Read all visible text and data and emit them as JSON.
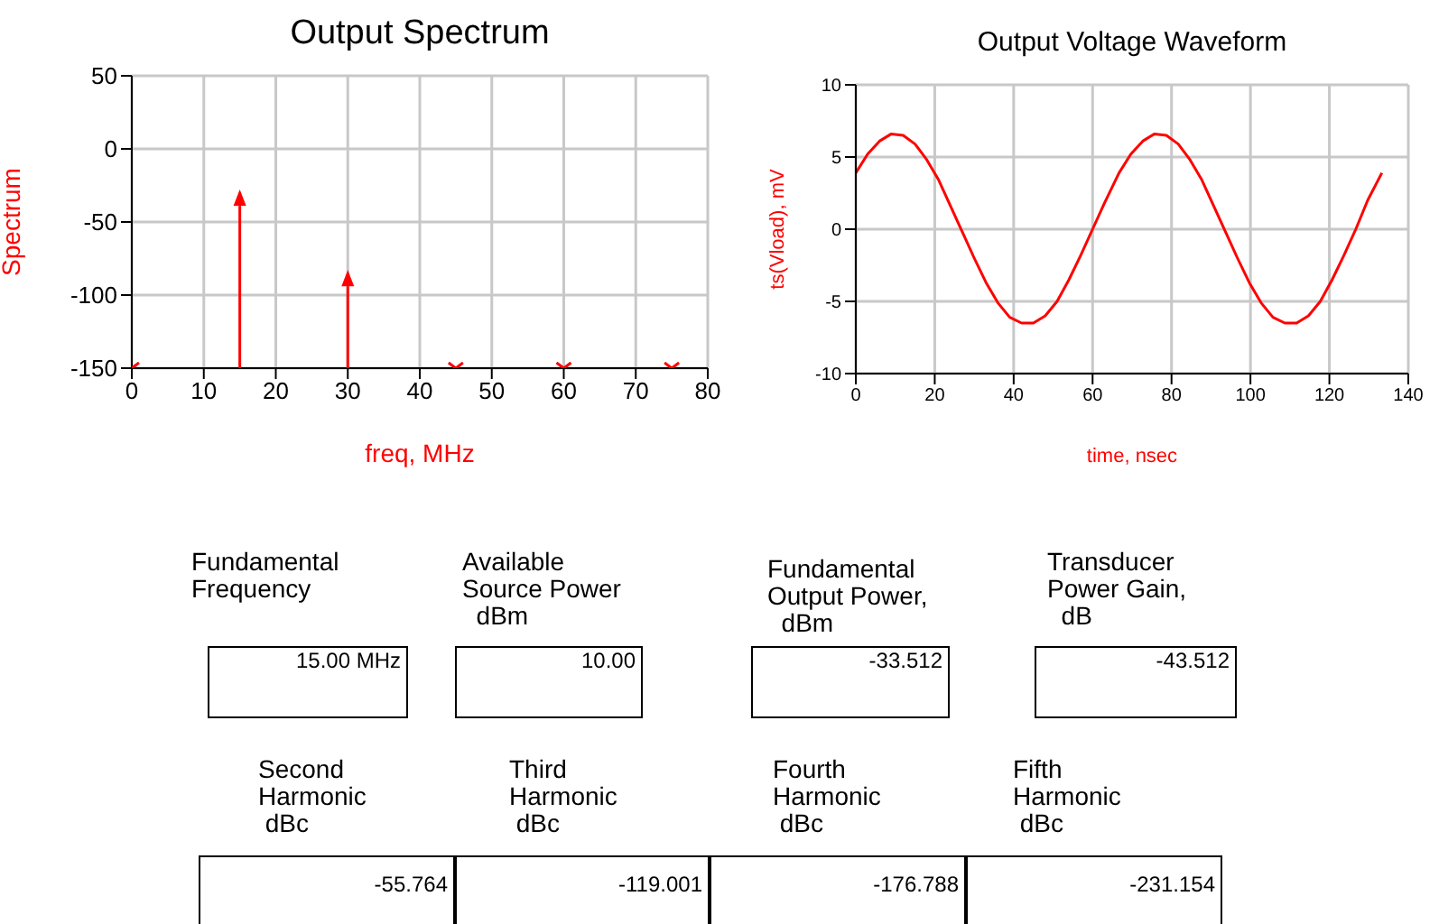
{
  "chart_data": [
    {
      "type": "lollipop",
      "title": "Output Spectrum",
      "xlabel": "freq, MHz",
      "ylabel": "Spectrum",
      "series": [
        {
          "type": "lollipop",
          "x": [
            15,
            30
          ],
          "values": [
            -34,
            -89
          ],
          "color": "#ff0000",
          "marker": "triangle"
        },
        {
          "type": "scatter",
          "x": [
            0,
            45,
            60,
            75
          ],
          "values": [
            -150,
            -150,
            -150,
            -150
          ],
          "color": "#ff0000",
          "marker": "cross"
        }
      ],
      "xlim": [
        0,
        80
      ],
      "xticks": [
        0,
        10,
        20,
        30,
        40,
        50,
        60,
        70,
        80
      ],
      "ylim": [
        -150,
        50
      ],
      "yticks": [
        -150,
        -100,
        -50,
        0,
        50
      ],
      "grid": true
    },
    {
      "type": "line",
      "title": "Output Voltage Waveform",
      "xlabel": "time, nsec",
      "ylabel": "ts(Vload), mV",
      "color": "#ff0000",
      "x": [
        0,
        3,
        6,
        9,
        12,
        15,
        18,
        21,
        24,
        27,
        30,
        33,
        36,
        39,
        42,
        45,
        48,
        51,
        54,
        57,
        60,
        63,
        66.7,
        69.7,
        72.7,
        75.7,
        78.7,
        81.7,
        84.7,
        87.7,
        90.7,
        93.7,
        96.7,
        99.7,
        102.7,
        105.7,
        108.7,
        111.7,
        114.7,
        117.7,
        120.7,
        123.7,
        126.7,
        129.7,
        133.3
      ],
      "values": [
        3.9,
        5.2,
        6.1,
        6.6,
        6.5,
        5.9,
        4.8,
        3.4,
        1.6,
        -0.2,
        -2.0,
        -3.7,
        -5.1,
        -6.1,
        -6.5,
        -6.5,
        -6.0,
        -5.0,
        -3.5,
        -1.8,
        0,
        1.8,
        3.9,
        5.2,
        6.1,
        6.6,
        6.5,
        5.9,
        4.8,
        3.4,
        1.6,
        -0.2,
        -2.0,
        -3.7,
        -5.1,
        -6.1,
        -6.5,
        -6.5,
        -6.0,
        -5.0,
        -3.5,
        -1.8,
        0,
        2.0,
        3.9
      ],
      "xlim": [
        0,
        140
      ],
      "xticks": [
        0,
        20,
        40,
        60,
        80,
        100,
        120,
        140
      ],
      "ylim": [
        -10,
        10
      ],
      "yticks": [
        -10,
        -5,
        0,
        5,
        10
      ],
      "grid": true,
      "marker": "none",
      "line_style": "solid"
    },
    {
      "type": "other",
      "categories": [
        "Fundamental\nFrequency",
        "Available\nSource Power\n  dBm",
        "Fundamental\nOutput Power,\n  dBm",
        "Transducer\nPower Gain,\n  dB",
        "Second\nHarmonic\n dBc",
        "Third\nHarmonic\n dBc",
        "Fourth\nHarmonic\n dBc",
        "Fifth\nHarmonic\n dBc"
      ],
      "value_labels": [
        "15.00 MHz",
        "10.00",
        "-33.512",
        "-43.512",
        "-55.764",
        "-119.001",
        "-176.788",
        "-231.154"
      ]
    }
  ]
}
